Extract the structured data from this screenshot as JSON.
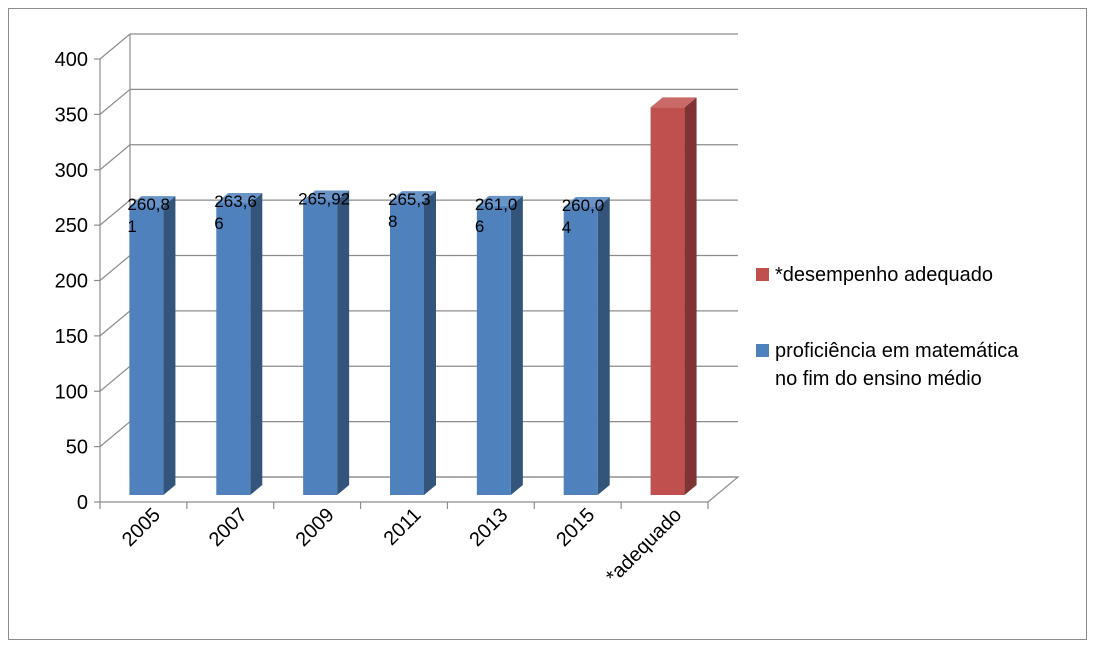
{
  "chart_data": {
    "type": "bar",
    "categories": [
      "2005",
      "2007",
      "2009",
      "2011",
      "2013",
      "2015",
      "*adequado"
    ],
    "series": [
      {
        "name": "proficiência em matemática no fim do ensino médio",
        "legend_lines": [
          "proficiência em matemática",
          "no fim do ensino médio"
        ],
        "color": "#4f81bd",
        "values": [
          260.81,
          263.66,
          265.92,
          265.38,
          261.06,
          260.04,
          null
        ],
        "data_labels": [
          [
            "260,8",
            "1"
          ],
          [
            "263,6",
            "6"
          ],
          [
            "265,92"
          ],
          [
            "265,3",
            "8"
          ],
          [
            "261,0",
            "6"
          ],
          [
            "260,0",
            "4"
          ],
          null
        ]
      },
      {
        "name": "*desempenho  adequado",
        "color": "#c0504d",
        "values": [
          null,
          null,
          null,
          null,
          null,
          null,
          350
        ]
      }
    ],
    "ylim": [
      0,
      400
    ],
    "yticks": [
      0,
      50,
      100,
      150,
      200,
      250,
      300,
      350,
      400
    ],
    "grid": true,
    "legend": "right",
    "title": "",
    "xlabel": "",
    "ylabel": ""
  }
}
